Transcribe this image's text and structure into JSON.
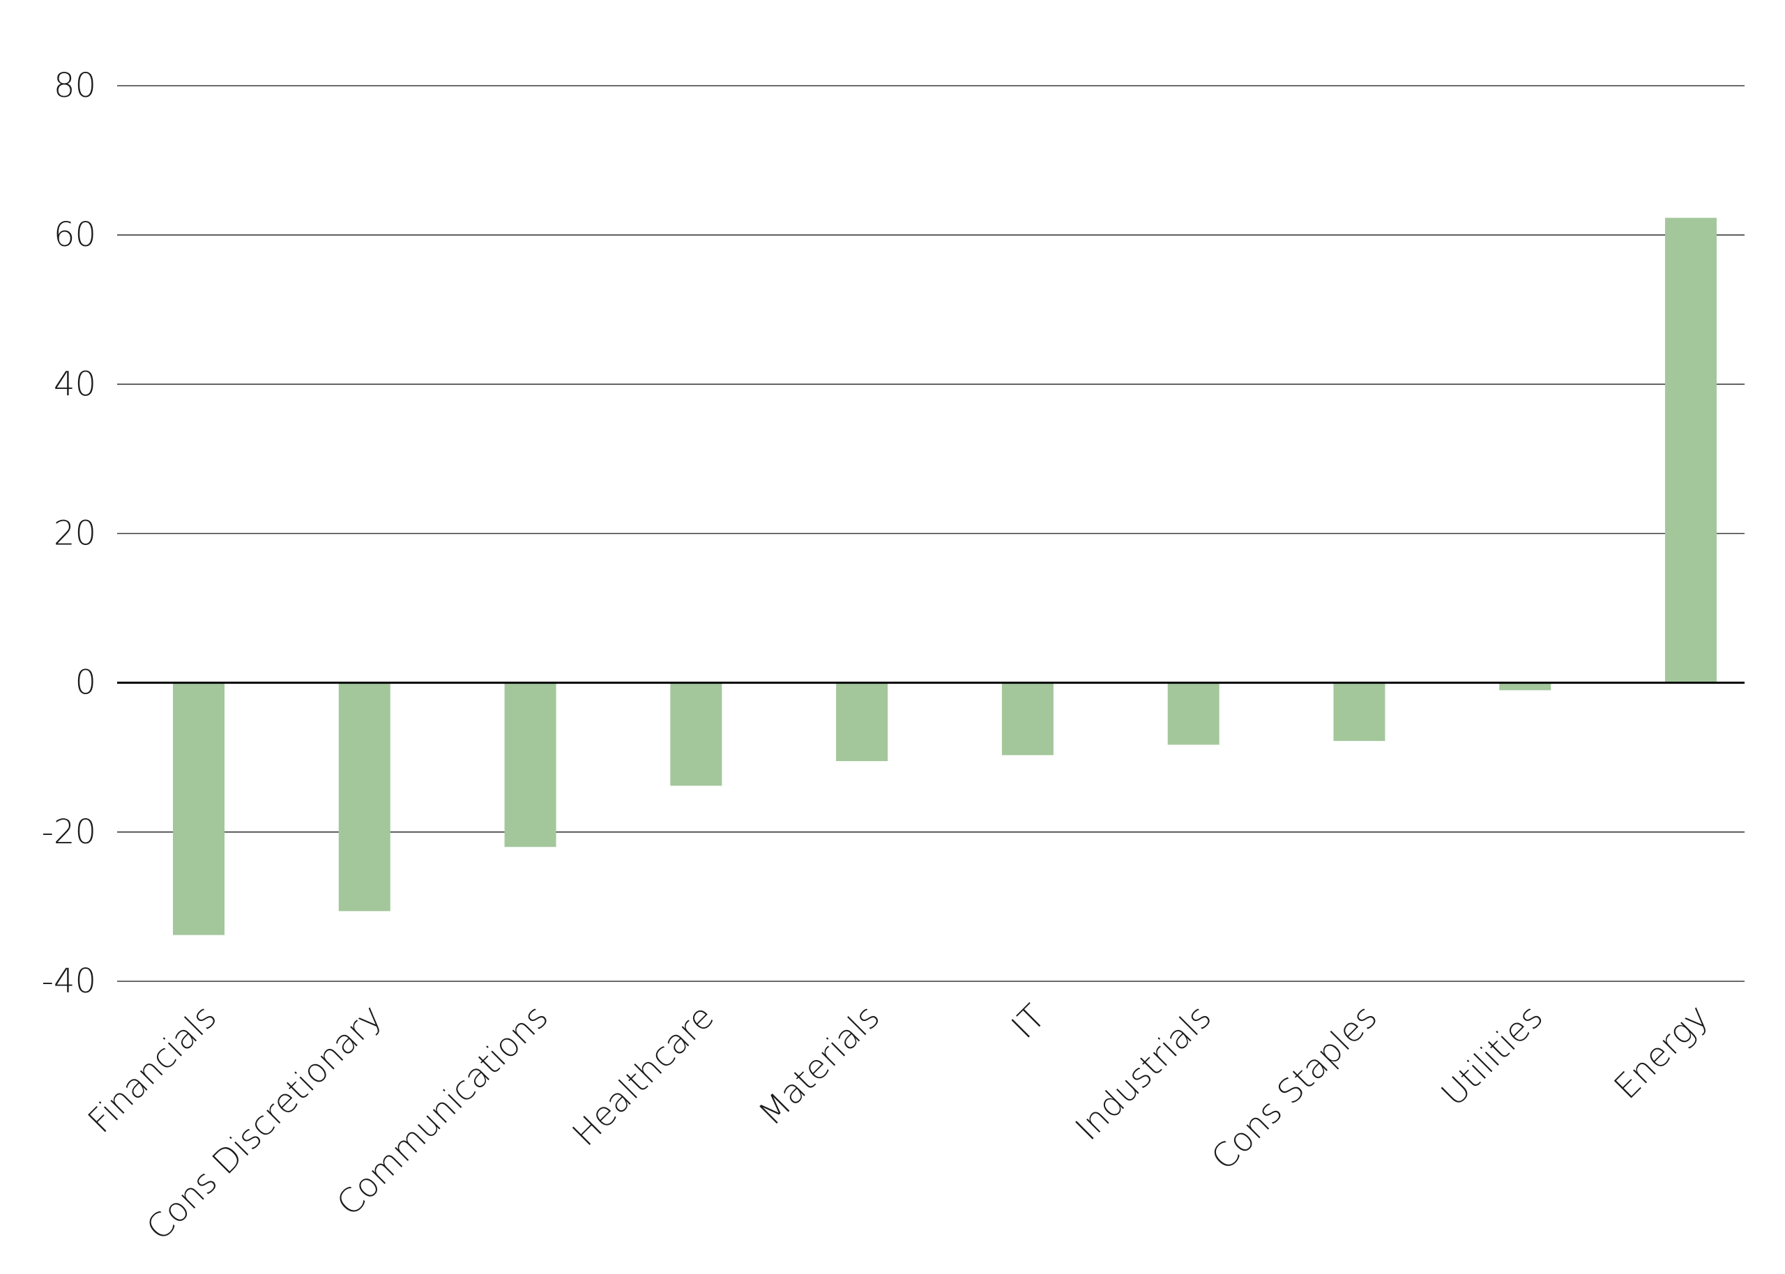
{
  "chart_data": {
    "type": "bar",
    "title": "",
    "xlabel": "",
    "ylabel": "",
    "categories": [
      "Financials",
      "Cons Discretionary",
      "Communications",
      "Healthcare",
      "Materials",
      "IT",
      "Industrials",
      "Cons Staples",
      "Utilities",
      "Energy"
    ],
    "values": [
      -33.8,
      -30.6,
      -22.0,
      -13.8,
      -10.5,
      -9.7,
      -8.3,
      -7.8,
      -1.0,
      62.3
    ],
    "ylim": [
      -40,
      80
    ],
    "yticks": [
      80,
      60,
      40,
      20,
      0,
      -20,
      -40
    ],
    "ytick_labels": [
      "80",
      "60",
      "40",
      "20",
      "0",
      "-20",
      "-40"
    ],
    "grid": true,
    "bar_color": "#a3c79b",
    "legend": "none"
  }
}
